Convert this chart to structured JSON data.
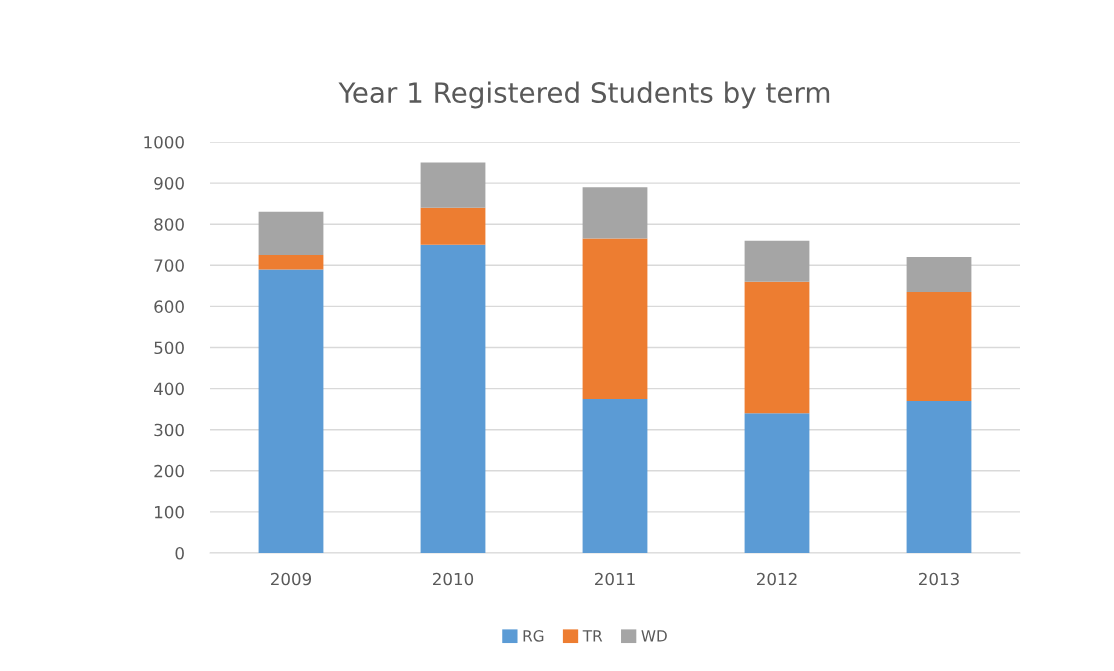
{
  "chart_data": {
    "type": "bar",
    "title": "Year 1 Registered Students by term",
    "categories": [
      "2009",
      "2010",
      "2011",
      "2012",
      "2013"
    ],
    "series": [
      {
        "name": "RG",
        "color": "#5b9bd5",
        "values": [
          690,
          750,
          375,
          340,
          370
        ]
      },
      {
        "name": "TR",
        "color": "#ed7d31",
        "values": [
          35,
          90,
          390,
          320,
          265
        ]
      },
      {
        "name": "WD",
        "color": "#a5a5a5",
        "values": [
          105,
          110,
          125,
          100,
          85
        ]
      }
    ],
    "stacked": true,
    "ylim": [
      0,
      1000
    ],
    "yticks": [
      0,
      100,
      200,
      300,
      400,
      500,
      600,
      700,
      800,
      900,
      1000
    ],
    "grid": "y",
    "legend": "bottom"
  }
}
